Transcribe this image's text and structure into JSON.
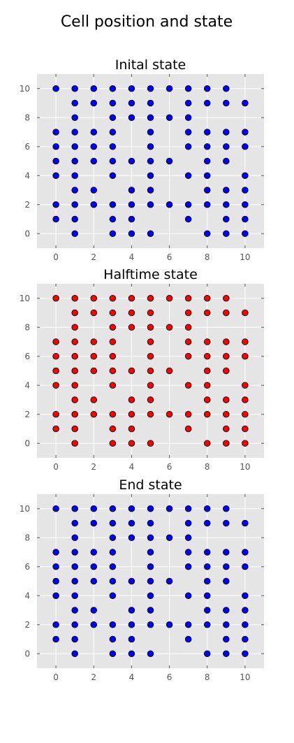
{
  "figure": {
    "title": "Cell position and state"
  },
  "colors": {
    "blue": "#0000ff",
    "red": "#ff0000",
    "panel_bg": "#e5e5e5",
    "grid": "#ffffff"
  },
  "chart_data": [
    {
      "type": "scatter",
      "title": "Inital state",
      "marker_color": "#0000ff",
      "xlim": [
        -1,
        11
      ],
      "ylim": [
        -1,
        11
      ],
      "xticks": [
        0,
        2,
        4,
        6,
        8,
        10
      ],
      "yticks": [
        0,
        2,
        4,
        6,
        8,
        10
      ],
      "grid": true,
      "points": [
        [
          0,
          10
        ],
        [
          1,
          10
        ],
        [
          2,
          10
        ],
        [
          3,
          10
        ],
        [
          4,
          10
        ],
        [
          5,
          10
        ],
        [
          6,
          10
        ],
        [
          7,
          10
        ],
        [
          8,
          10
        ],
        [
          9,
          10
        ],
        [
          1,
          9
        ],
        [
          2,
          9
        ],
        [
          3,
          9
        ],
        [
          4,
          9
        ],
        [
          5,
          9
        ],
        [
          7,
          9
        ],
        [
          8,
          9
        ],
        [
          9,
          9
        ],
        [
          10,
          9
        ],
        [
          1,
          8
        ],
        [
          3,
          8
        ],
        [
          4,
          8
        ],
        [
          5,
          8
        ],
        [
          6,
          8
        ],
        [
          7,
          8
        ],
        [
          0,
          7
        ],
        [
          1,
          7
        ],
        [
          2,
          7
        ],
        [
          3,
          7
        ],
        [
          5,
          7
        ],
        [
          7,
          7
        ],
        [
          8,
          7
        ],
        [
          9,
          7
        ],
        [
          10,
          7
        ],
        [
          0,
          6
        ],
        [
          1,
          6
        ],
        [
          2,
          6
        ],
        [
          3,
          6
        ],
        [
          5,
          6
        ],
        [
          7,
          6
        ],
        [
          8,
          6
        ],
        [
          9,
          6
        ],
        [
          10,
          6
        ],
        [
          0,
          5
        ],
        [
          1,
          5
        ],
        [
          2,
          5
        ],
        [
          3,
          5
        ],
        [
          4,
          5
        ],
        [
          5,
          5
        ],
        [
          6,
          5
        ],
        [
          8,
          5
        ],
        [
          9,
          5
        ],
        [
          0,
          4
        ],
        [
          1,
          4
        ],
        [
          3,
          4
        ],
        [
          5,
          4
        ],
        [
          7,
          4
        ],
        [
          8,
          4
        ],
        [
          10,
          4
        ],
        [
          1,
          3
        ],
        [
          2,
          3
        ],
        [
          4,
          3
        ],
        [
          5,
          3
        ],
        [
          8,
          3
        ],
        [
          9,
          3
        ],
        [
          10,
          3
        ],
        [
          0,
          2
        ],
        [
          1,
          2
        ],
        [
          2,
          2
        ],
        [
          3,
          2
        ],
        [
          4,
          2
        ],
        [
          5,
          2
        ],
        [
          6,
          2
        ],
        [
          7,
          2
        ],
        [
          8,
          2
        ],
        [
          9,
          2
        ],
        [
          10,
          2
        ],
        [
          0,
          1
        ],
        [
          1,
          1
        ],
        [
          3,
          1
        ],
        [
          4,
          1
        ],
        [
          7,
          1
        ],
        [
          9,
          1
        ],
        [
          10,
          1
        ],
        [
          1,
          0
        ],
        [
          3,
          0
        ],
        [
          4,
          0
        ],
        [
          5,
          0
        ],
        [
          8,
          0
        ],
        [
          9,
          0
        ],
        [
          10,
          0
        ]
      ]
    },
    {
      "type": "scatter",
      "title": "Halftime state",
      "marker_color": "#ff0000",
      "xlim": [
        -1,
        11
      ],
      "ylim": [
        -1,
        11
      ],
      "xticks": [
        0,
        2,
        4,
        6,
        8,
        10
      ],
      "yticks": [
        0,
        2,
        4,
        6,
        8,
        10
      ],
      "grid": true,
      "points": [
        [
          0,
          10
        ],
        [
          1,
          10
        ],
        [
          2,
          10
        ],
        [
          3,
          10
        ],
        [
          4,
          10
        ],
        [
          5,
          10
        ],
        [
          6,
          10
        ],
        [
          7,
          10
        ],
        [
          8,
          10
        ],
        [
          9,
          10
        ],
        [
          1,
          9
        ],
        [
          2,
          9
        ],
        [
          3,
          9
        ],
        [
          4,
          9
        ],
        [
          5,
          9
        ],
        [
          7,
          9
        ],
        [
          8,
          9
        ],
        [
          9,
          9
        ],
        [
          10,
          9
        ],
        [
          1,
          8
        ],
        [
          3,
          8
        ],
        [
          4,
          8
        ],
        [
          5,
          8
        ],
        [
          6,
          8
        ],
        [
          7,
          8
        ],
        [
          0,
          7
        ],
        [
          1,
          7
        ],
        [
          2,
          7
        ],
        [
          3,
          7
        ],
        [
          5,
          7
        ],
        [
          7,
          7
        ],
        [
          8,
          7
        ],
        [
          9,
          7
        ],
        [
          10,
          7
        ],
        [
          0,
          6
        ],
        [
          1,
          6
        ],
        [
          2,
          6
        ],
        [
          3,
          6
        ],
        [
          5,
          6
        ],
        [
          7,
          6
        ],
        [
          8,
          6
        ],
        [
          9,
          6
        ],
        [
          10,
          6
        ],
        [
          0,
          5
        ],
        [
          1,
          5
        ],
        [
          2,
          5
        ],
        [
          3,
          5
        ],
        [
          4,
          5
        ],
        [
          5,
          5
        ],
        [
          6,
          5
        ],
        [
          8,
          5
        ],
        [
          9,
          5
        ],
        [
          0,
          4
        ],
        [
          1,
          4
        ],
        [
          3,
          4
        ],
        [
          5,
          4
        ],
        [
          7,
          4
        ],
        [
          8,
          4
        ],
        [
          10,
          4
        ],
        [
          1,
          3
        ],
        [
          2,
          3
        ],
        [
          4,
          3
        ],
        [
          5,
          3
        ],
        [
          8,
          3
        ],
        [
          9,
          3
        ],
        [
          10,
          3
        ],
        [
          0,
          2
        ],
        [
          1,
          2
        ],
        [
          2,
          2
        ],
        [
          3,
          2
        ],
        [
          4,
          2
        ],
        [
          5,
          2
        ],
        [
          6,
          2
        ],
        [
          7,
          2
        ],
        [
          8,
          2
        ],
        [
          9,
          2
        ],
        [
          10,
          2
        ],
        [
          0,
          1
        ],
        [
          1,
          1
        ],
        [
          3,
          1
        ],
        [
          4,
          1
        ],
        [
          7,
          1
        ],
        [
          9,
          1
        ],
        [
          10,
          1
        ],
        [
          1,
          0
        ],
        [
          3,
          0
        ],
        [
          4,
          0
        ],
        [
          5,
          0
        ],
        [
          8,
          0
        ],
        [
          9,
          0
        ],
        [
          10,
          0
        ]
      ]
    },
    {
      "type": "scatter",
      "title": "End state",
      "marker_color": "#0000ff",
      "xlim": [
        -1,
        11
      ],
      "ylim": [
        -1,
        11
      ],
      "xticks": [
        0,
        2,
        4,
        6,
        8,
        10
      ],
      "yticks": [
        0,
        2,
        4,
        6,
        8,
        10
      ],
      "grid": true,
      "points": [
        [
          0,
          10
        ],
        [
          1,
          10
        ],
        [
          2,
          10
        ],
        [
          3,
          10
        ],
        [
          4,
          10
        ],
        [
          5,
          10
        ],
        [
          6,
          10
        ],
        [
          7,
          10
        ],
        [
          8,
          10
        ],
        [
          9,
          10
        ],
        [
          1,
          9
        ],
        [
          2,
          9
        ],
        [
          3,
          9
        ],
        [
          4,
          9
        ],
        [
          5,
          9
        ],
        [
          7,
          9
        ],
        [
          8,
          9
        ],
        [
          9,
          9
        ],
        [
          10,
          9
        ],
        [
          1,
          8
        ],
        [
          3,
          8
        ],
        [
          4,
          8
        ],
        [
          5,
          8
        ],
        [
          6,
          8
        ],
        [
          7,
          8
        ],
        [
          0,
          7
        ],
        [
          1,
          7
        ],
        [
          2,
          7
        ],
        [
          3,
          7
        ],
        [
          5,
          7
        ],
        [
          7,
          7
        ],
        [
          8,
          7
        ],
        [
          9,
          7
        ],
        [
          10,
          7
        ],
        [
          0,
          6
        ],
        [
          1,
          6
        ],
        [
          2,
          6
        ],
        [
          3,
          6
        ],
        [
          5,
          6
        ],
        [
          7,
          6
        ],
        [
          8,
          6
        ],
        [
          9,
          6
        ],
        [
          10,
          6
        ],
        [
          0,
          5
        ],
        [
          1,
          5
        ],
        [
          2,
          5
        ],
        [
          3,
          5
        ],
        [
          4,
          5
        ],
        [
          5,
          5
        ],
        [
          6,
          5
        ],
        [
          8,
          5
        ],
        [
          9,
          5
        ],
        [
          0,
          4
        ],
        [
          1,
          4
        ],
        [
          3,
          4
        ],
        [
          5,
          4
        ],
        [
          7,
          4
        ],
        [
          8,
          4
        ],
        [
          10,
          4
        ],
        [
          1,
          3
        ],
        [
          2,
          3
        ],
        [
          4,
          3
        ],
        [
          5,
          3
        ],
        [
          8,
          3
        ],
        [
          9,
          3
        ],
        [
          10,
          3
        ],
        [
          0,
          2
        ],
        [
          1,
          2
        ],
        [
          2,
          2
        ],
        [
          3,
          2
        ],
        [
          4,
          2
        ],
        [
          5,
          2
        ],
        [
          6,
          2
        ],
        [
          7,
          2
        ],
        [
          8,
          2
        ],
        [
          9,
          2
        ],
        [
          10,
          2
        ],
        [
          0,
          1
        ],
        [
          1,
          1
        ],
        [
          3,
          1
        ],
        [
          4,
          1
        ],
        [
          7,
          1
        ],
        [
          9,
          1
        ],
        [
          10,
          1
        ],
        [
          1,
          0
        ],
        [
          3,
          0
        ],
        [
          4,
          0
        ],
        [
          5,
          0
        ],
        [
          8,
          0
        ],
        [
          9,
          0
        ],
        [
          10,
          0
        ]
      ]
    }
  ]
}
